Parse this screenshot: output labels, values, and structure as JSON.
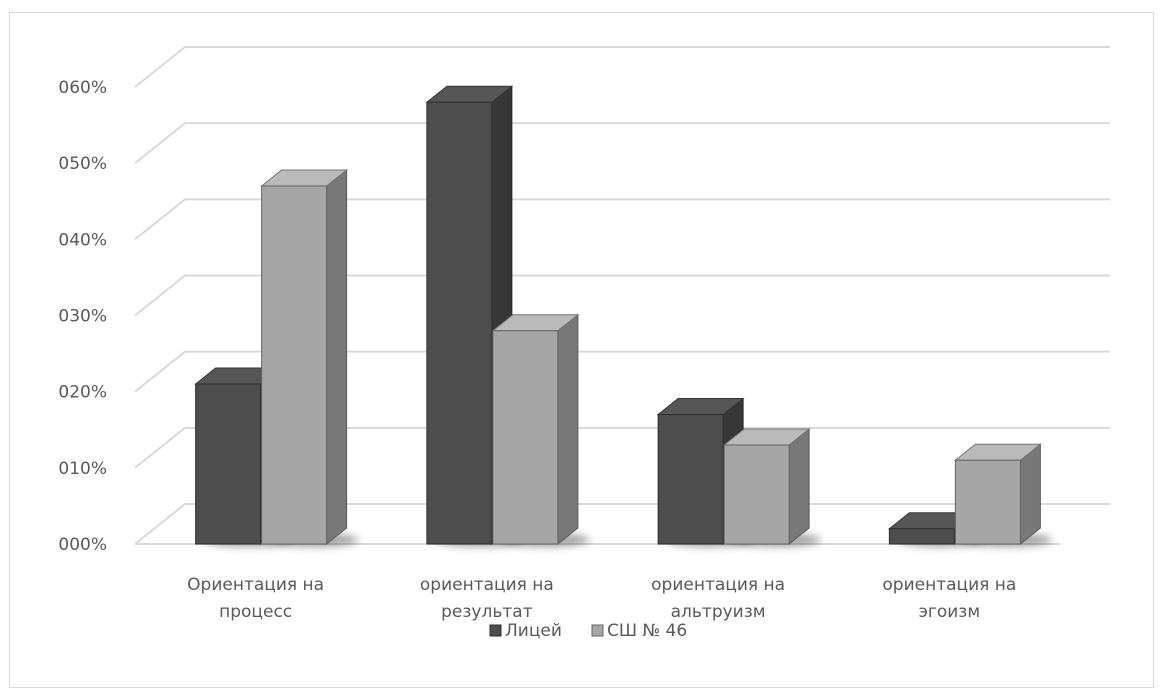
{
  "chart_data": {
    "type": "bar",
    "bar_style": "3d-clustered-column",
    "categories": [
      [
        "Ориентация на",
        "процесс"
      ],
      [
        "ориентация на",
        "результат"
      ],
      [
        "ориентация на",
        "альтруизм"
      ],
      [
        "ориентация на",
        "эгоизм"
      ]
    ],
    "series": [
      {
        "name": "Лицей",
        "values": [
          0.21,
          0.58,
          0.17,
          0.02
        ],
        "color": "#4d4d4d"
      },
      {
        "name": "СШ № 46",
        "values": [
          0.47,
          0.28,
          0.13,
          0.11
        ],
        "color": "#a6a6a6"
      }
    ],
    "y_ticks": [
      "000%",
      "010%",
      "020%",
      "030%",
      "040%",
      "050%",
      "060%"
    ],
    "ylim": [
      0,
      0.6
    ],
    "grid": true,
    "legend_position": "bottom"
  }
}
